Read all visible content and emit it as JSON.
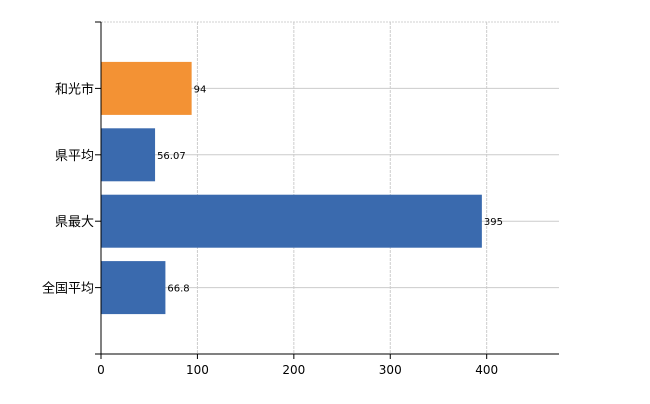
{
  "chart_data": {
    "type": "bar",
    "orientation": "horizontal",
    "categories": [
      "和光市",
      "県平均",
      "県最大",
      "全国平均"
    ],
    "values": [
      94,
      56.07,
      395,
      66.8
    ],
    "data_labels": [
      "94",
      "56.07",
      "395",
      "66.8"
    ],
    "bar_colors": [
      "#f39234",
      "#3a6aae",
      "#3a6aae",
      "#3a6aae"
    ],
    "xlim": [
      0,
      475
    ],
    "x_ticks": [
      0,
      100,
      200,
      300,
      400
    ],
    "x_tick_labels": [
      "0",
      "100",
      "200",
      "300",
      "400"
    ],
    "title": "",
    "xlabel": "",
    "ylabel": "",
    "grid": true,
    "legend": "none"
  }
}
